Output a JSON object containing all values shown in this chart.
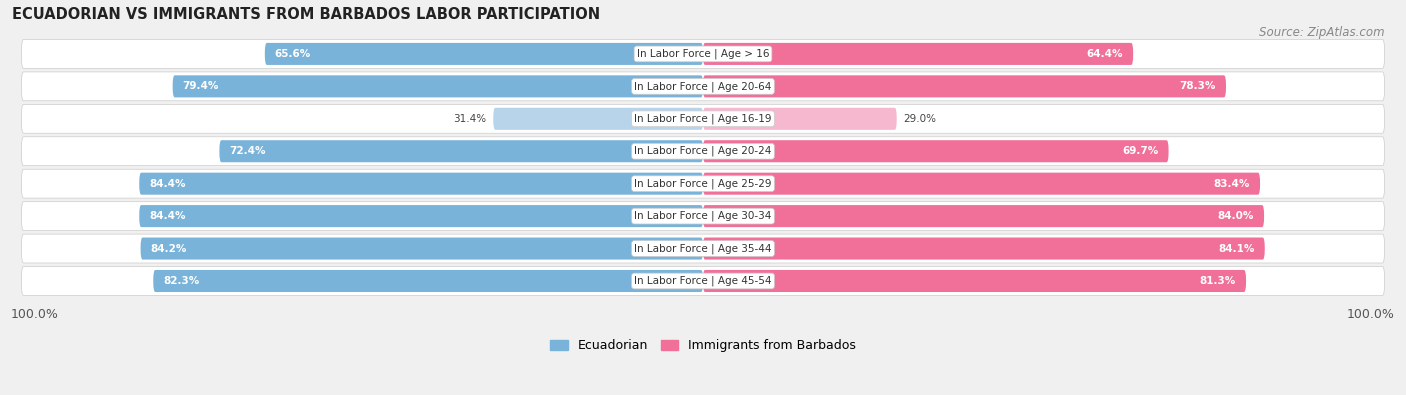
{
  "title": "ECUADORIAN VS IMMIGRANTS FROM BARBADOS LABOR PARTICIPATION",
  "source": "Source: ZipAtlas.com",
  "categories": [
    "In Labor Force | Age > 16",
    "In Labor Force | Age 20-64",
    "In Labor Force | Age 16-19",
    "In Labor Force | Age 20-24",
    "In Labor Force | Age 25-29",
    "In Labor Force | Age 30-34",
    "In Labor Force | Age 35-44",
    "In Labor Force | Age 45-54"
  ],
  "ecuadorian": [
    65.6,
    79.4,
    31.4,
    72.4,
    84.4,
    84.4,
    84.2,
    82.3
  ],
  "barbados": [
    64.4,
    78.3,
    29.0,
    69.7,
    83.4,
    84.0,
    84.1,
    81.3
  ],
  "color_ecuador": "#7ab3d9",
  "color_ecuador_light": "#b8d4ea",
  "color_barbados": "#f07099",
  "color_barbados_light": "#f5b8ce",
  "background_color": "#f0f0f0",
  "row_bg_color": "#ffffff",
  "figsize": [
    14.06,
    3.95
  ],
  "dpi": 100,
  "legend_labels": [
    "Ecuadorian",
    "Immigrants from Barbados"
  ]
}
